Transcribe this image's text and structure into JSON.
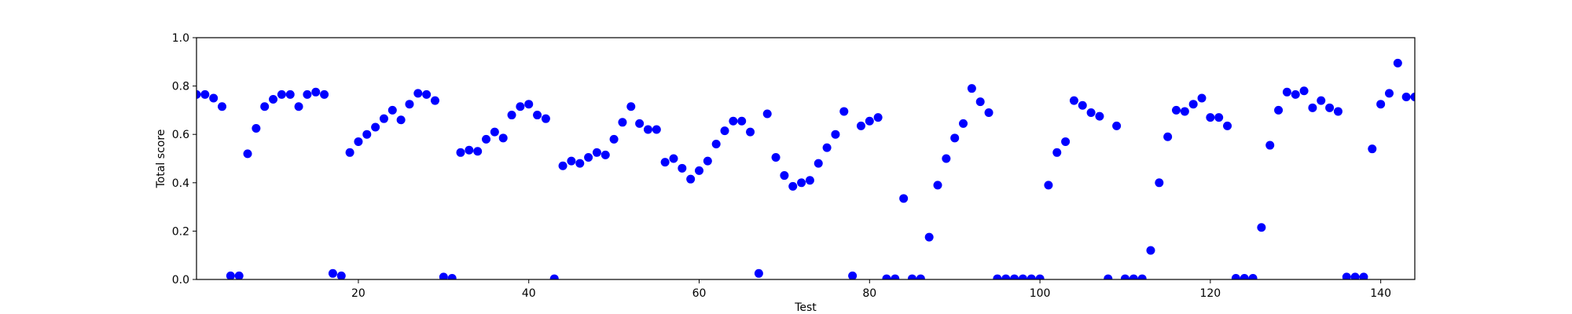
{
  "chart_data": {
    "type": "scatter",
    "title": "",
    "xlabel": "Test",
    "ylabel": "Total score",
    "xlim": [
      1,
      144
    ],
    "ylim": [
      0.0,
      1.0
    ],
    "x_ticks": [
      20,
      40,
      60,
      80,
      100,
      120,
      140
    ],
    "y_ticks": [
      "0.0",
      "0.2",
      "0.4",
      "0.6",
      "0.8",
      "1.0"
    ],
    "grid": false,
    "legend": "none",
    "marker_color": "#0000ff",
    "series": [
      {
        "x": [
          1,
          2,
          3,
          4,
          5,
          6,
          7,
          8,
          9,
          10,
          11,
          12,
          13,
          14,
          15,
          16,
          17,
          18,
          19,
          20,
          21,
          22,
          23,
          24,
          25,
          26,
          27,
          28,
          29,
          30,
          31,
          32,
          33,
          34,
          35,
          36,
          37,
          38,
          39,
          40,
          41,
          42,
          43,
          44,
          45,
          46,
          47,
          48,
          49,
          50,
          51,
          52,
          53,
          54,
          55,
          56,
          57,
          58,
          59,
          60,
          61,
          62,
          63,
          64,
          65,
          66,
          67,
          68,
          69,
          70,
          71,
          72,
          73,
          74,
          75,
          76,
          77,
          78,
          79,
          80,
          81,
          82,
          83,
          84,
          85,
          86,
          87,
          88,
          89,
          90,
          91,
          92,
          93,
          94,
          95,
          96,
          97,
          98,
          99,
          100,
          101,
          102,
          103,
          104,
          105,
          106,
          107,
          108,
          109,
          110,
          111,
          112,
          113,
          114,
          115,
          116,
          117,
          118,
          119,
          120,
          121,
          122,
          123,
          124,
          125,
          126,
          127,
          128,
          129,
          130,
          131,
          132,
          133,
          134,
          135,
          136,
          137,
          138,
          139,
          140,
          141,
          142,
          143,
          144
        ],
        "y": [
          0.765,
          0.765,
          0.75,
          0.715,
          0.015,
          0.015,
          0.52,
          0.625,
          0.715,
          0.745,
          0.765,
          0.765,
          0.715,
          0.765,
          0.775,
          0.765,
          0.025,
          0.015,
          0.525,
          0.57,
          0.6,
          0.63,
          0.665,
          0.7,
          0.66,
          0.725,
          0.77,
          0.765,
          0.74,
          0.01,
          0.005,
          0.525,
          0.535,
          0.53,
          0.58,
          0.61,
          0.585,
          0.68,
          0.715,
          0.725,
          0.68,
          0.665,
          0.003,
          0.47,
          0.49,
          0.48,
          0.505,
          0.525,
          0.515,
          0.58,
          0.65,
          0.715,
          0.645,
          0.62,
          0.62,
          0.485,
          0.5,
          0.46,
          0.415,
          0.45,
          0.49,
          0.56,
          0.615,
          0.655,
          0.655,
          0.61,
          0.025,
          0.685,
          0.505,
          0.43,
          0.385,
          0.4,
          0.41,
          0.48,
          0.545,
          0.6,
          0.695,
          0.015,
          0.635,
          0.655,
          0.67,
          0.003,
          0.003,
          0.335,
          0.003,
          0.003,
          0.175,
          0.39,
          0.5,
          0.585,
          0.645,
          0.79,
          0.735,
          0.69,
          0.003,
          0.003,
          0.003,
          0.003,
          0.003,
          0.003,
          0.39,
          0.525,
          0.57,
          0.74,
          0.72,
          0.69,
          0.675,
          0.003,
          0.635,
          0.003,
          0.003,
          0.003,
          0.12,
          0.4,
          0.59,
          0.7,
          0.695,
          0.725,
          0.75,
          0.67,
          0.67,
          0.635,
          0.005,
          0.005,
          0.005,
          0.215,
          0.555,
          0.7,
          0.775,
          0.765,
          0.78,
          0.71,
          0.74,
          0.71,
          0.695,
          0.01,
          0.01,
          0.01,
          0.54,
          0.725,
          0.77,
          0.895,
          0.755,
          0.755
        ]
      }
    ]
  }
}
